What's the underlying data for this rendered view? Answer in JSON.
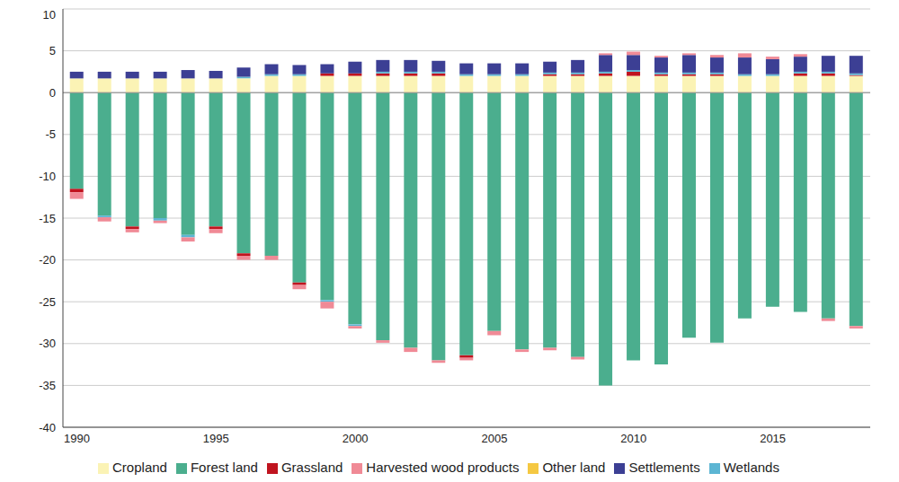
{
  "chart_data": {
    "type": "bar",
    "stacked": true,
    "grid": true,
    "legend": "bottom",
    "categories": [
      1990,
      null,
      null,
      null,
      null,
      1995,
      null,
      null,
      null,
      null,
      2000,
      null,
      null,
      null,
      null,
      2005,
      null,
      null,
      null,
      null,
      2010,
      null,
      null,
      null,
      null,
      2015,
      null,
      null,
      null
    ],
    "ylim": [
      -40,
      10
    ],
    "yticks": [
      -40,
      -35,
      -30,
      -25,
      -20,
      -15,
      -10,
      -5,
      0,
      5,
      10
    ],
    "series": [
      {
        "name": "Forest land",
        "color": "#4bae8e",
        "values": [
          -11.5,
          -14.7,
          -16,
          -15,
          -17,
          -16,
          -19.2,
          -19.5,
          -22.7,
          -24.8,
          -27.7,
          -29.6,
          -30.5,
          -32,
          -31.4,
          -28.5,
          -30.7,
          -30.5,
          -31.6,
          -35,
          -32,
          -32.5,
          -29.3,
          -29.9,
          -27,
          -25.6,
          -26.2,
          -27,
          -27.9
        ]
      },
      {
        "name": "Cropland",
        "color": "#fbf3b5",
        "values": [
          1.7,
          1.7,
          1.7,
          1.7,
          1.7,
          1.7,
          1.7,
          2.0,
          2.0,
          2.0,
          2.0,
          2.0,
          2.0,
          2.0,
          2.0,
          2.0,
          2.0,
          2.0,
          2.0,
          2.0,
          2.0,
          2.0,
          2.0,
          2.0,
          2.0,
          2.0,
          2.0,
          2.0,
          2.0
        ]
      },
      {
        "name": "Grassland",
        "color": "#c0141f",
        "values": [
          -0.4,
          0,
          -0.3,
          0,
          0,
          -0.3,
          -0.3,
          0,
          -0.3,
          0.3,
          0.3,
          0.3,
          0.3,
          0.3,
          -0.3,
          0,
          0,
          0.2,
          0.2,
          0.3,
          0.5,
          0.2,
          0.2,
          0.2,
          0,
          0,
          0.3,
          0.3,
          0.1
        ]
      },
      {
        "name": "Wetlands",
        "color": "#5cb5d3",
        "values": [
          0,
          -0.2,
          0,
          -0.3,
          -0.3,
          0,
          0.2,
          0.2,
          0.2,
          -0.2,
          -0.2,
          0.2,
          0.2,
          0.2,
          0.2,
          0.2,
          0.2,
          0.2,
          0.2,
          0.2,
          0.2,
          0.2,
          0.2,
          0.2,
          0.2,
          0.2,
          0.2,
          0.2,
          0.2
        ]
      },
      {
        "name": "Settlements",
        "color": "#3c3f94",
        "values": [
          0.8,
          0.8,
          0.8,
          0.8,
          1.0,
          0.9,
          1.1,
          1.2,
          1.1,
          1.1,
          1.4,
          1.4,
          1.4,
          1.3,
          1.3,
          1.3,
          1.3,
          1.3,
          1.5,
          2.0,
          1.8,
          1.8,
          2.1,
          1.8,
          2.0,
          1.8,
          1.8,
          1.9,
          2.1
        ]
      },
      {
        "name": "Other land",
        "color": "#f5c842",
        "values": [
          0,
          0,
          0,
          0,
          0,
          0,
          0,
          0,
          0,
          0,
          0,
          0,
          0,
          0,
          0,
          0,
          0,
          0,
          0,
          0,
          0,
          0,
          0,
          0,
          0,
          0,
          0,
          0,
          0
        ]
      },
      {
        "name": "Harvested wood products",
        "color": "#f08a96",
        "values": [
          -0.8,
          -0.5,
          -0.4,
          -0.3,
          -0.5,
          -0.5,
          -0.5,
          -0.5,
          -0.5,
          -0.8,
          -0.3,
          -0.3,
          -0.5,
          -0.3,
          -0.3,
          -0.5,
          -0.3,
          -0.3,
          -0.3,
          0.2,
          0.4,
          0.2,
          0.2,
          0.3,
          0.5,
          0.3,
          0.3,
          -0.3,
          -0.3
        ]
      }
    ]
  }
}
